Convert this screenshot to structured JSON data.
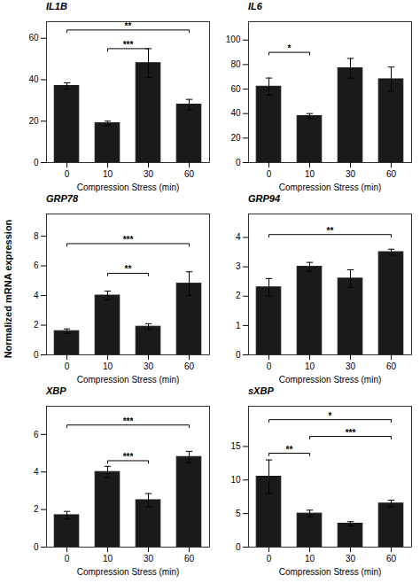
{
  "ylabel": "Normalized mRNA expression",
  "chart_data": [
    {
      "type": "bar",
      "title": "IL1B",
      "categories": [
        "0",
        "10",
        "30",
        "60"
      ],
      "values": [
        37,
        19,
        48,
        28
      ],
      "errors": [
        1.5,
        1.0,
        7,
        2.5
      ],
      "color": "#1a1a1a",
      "ylim": [
        0,
        68
      ],
      "yticks": [
        0,
        20,
        40,
        60
      ],
      "xlabel": "Compression Stress (min)",
      "brackets": [
        {
          "from": "10",
          "to": "30",
          "label": "***",
          "height": 55
        },
        {
          "from": "0",
          "to": "60",
          "label": "**",
          "height": 64
        }
      ]
    },
    {
      "type": "bar",
      "title": "IL6",
      "categories": [
        "0",
        "10",
        "30",
        "60"
      ],
      "values": [
        62,
        38,
        77,
        68
      ],
      "errors": [
        7,
        2,
        8,
        10
      ],
      "color": "#1a1a1a",
      "ylim": [
        0,
        115
      ],
      "yticks": [
        0,
        20,
        40,
        60,
        80,
        100
      ],
      "xlabel": "Compression Stress (min)",
      "brackets": [
        {
          "from": "0",
          "to": "10",
          "label": "*",
          "height": 90
        }
      ]
    },
    {
      "type": "bar",
      "title": "GRP78",
      "categories": [
        "0",
        "10",
        "30",
        "60"
      ],
      "values": [
        1.6,
        4.0,
        1.9,
        4.8
      ],
      "errors": [
        0.15,
        0.3,
        0.2,
        0.8
      ],
      "color": "#1a1a1a",
      "ylim": [
        0,
        9.5
      ],
      "yticks": [
        0,
        2,
        4,
        6,
        8
      ],
      "xlabel": "Compression Stress (min)",
      "brackets": [
        {
          "from": "10",
          "to": "30",
          "label": "**",
          "height": 5.5
        },
        {
          "from": "0",
          "to": "60",
          "label": "***",
          "height": 7.5
        }
      ]
    },
    {
      "type": "bar",
      "title": "GRP94",
      "categories": [
        "0",
        "10",
        "30",
        "60"
      ],
      "values": [
        2.3,
        3.0,
        2.6,
        3.5
      ],
      "errors": [
        0.3,
        0.15,
        0.3,
        0.1
      ],
      "color": "#1a1a1a",
      "ylim": [
        0,
        4.8
      ],
      "yticks": [
        0,
        1,
        2,
        3,
        4
      ],
      "xlabel": "Compression Stress (min)",
      "brackets": [
        {
          "from": "0",
          "to": "60",
          "label": "**",
          "height": 4.1
        }
      ]
    },
    {
      "type": "bar",
      "title": "XBP",
      "categories": [
        "0",
        "10",
        "30",
        "60"
      ],
      "values": [
        1.7,
        4.0,
        2.5,
        4.8
      ],
      "errors": [
        0.2,
        0.3,
        0.35,
        0.3
      ],
      "color": "#1a1a1a",
      "ylim": [
        0,
        7.5
      ],
      "yticks": [
        0,
        2,
        4,
        6
      ],
      "xlabel": "Compression Stress (min)",
      "brackets": [
        {
          "from": "10",
          "to": "30",
          "label": "***",
          "height": 4.6
        },
        {
          "from": "0",
          "to": "60",
          "label": "***",
          "height": 6.5
        }
      ]
    },
    {
      "type": "bar",
      "title": "sXBP",
      "categories": [
        "0",
        "10",
        "30",
        "60"
      ],
      "values": [
        10.5,
        5.0,
        3.5,
        6.5
      ],
      "errors": [
        2.5,
        0.5,
        0.3,
        0.5
      ],
      "color": "#1a1a1a",
      "ylim": [
        0,
        21
      ],
      "yticks": [
        0,
        5,
        10,
        15
      ],
      "xlabel": "Compression Stress (min)",
      "brackets": [
        {
          "from": "0",
          "to": "10",
          "label": "**",
          "height": 14
        },
        {
          "from": "10",
          "to": "60",
          "label": "***",
          "height": 16.5
        },
        {
          "from": "0",
          "to": "60",
          "label": "*",
          "height": 19
        }
      ]
    }
  ]
}
